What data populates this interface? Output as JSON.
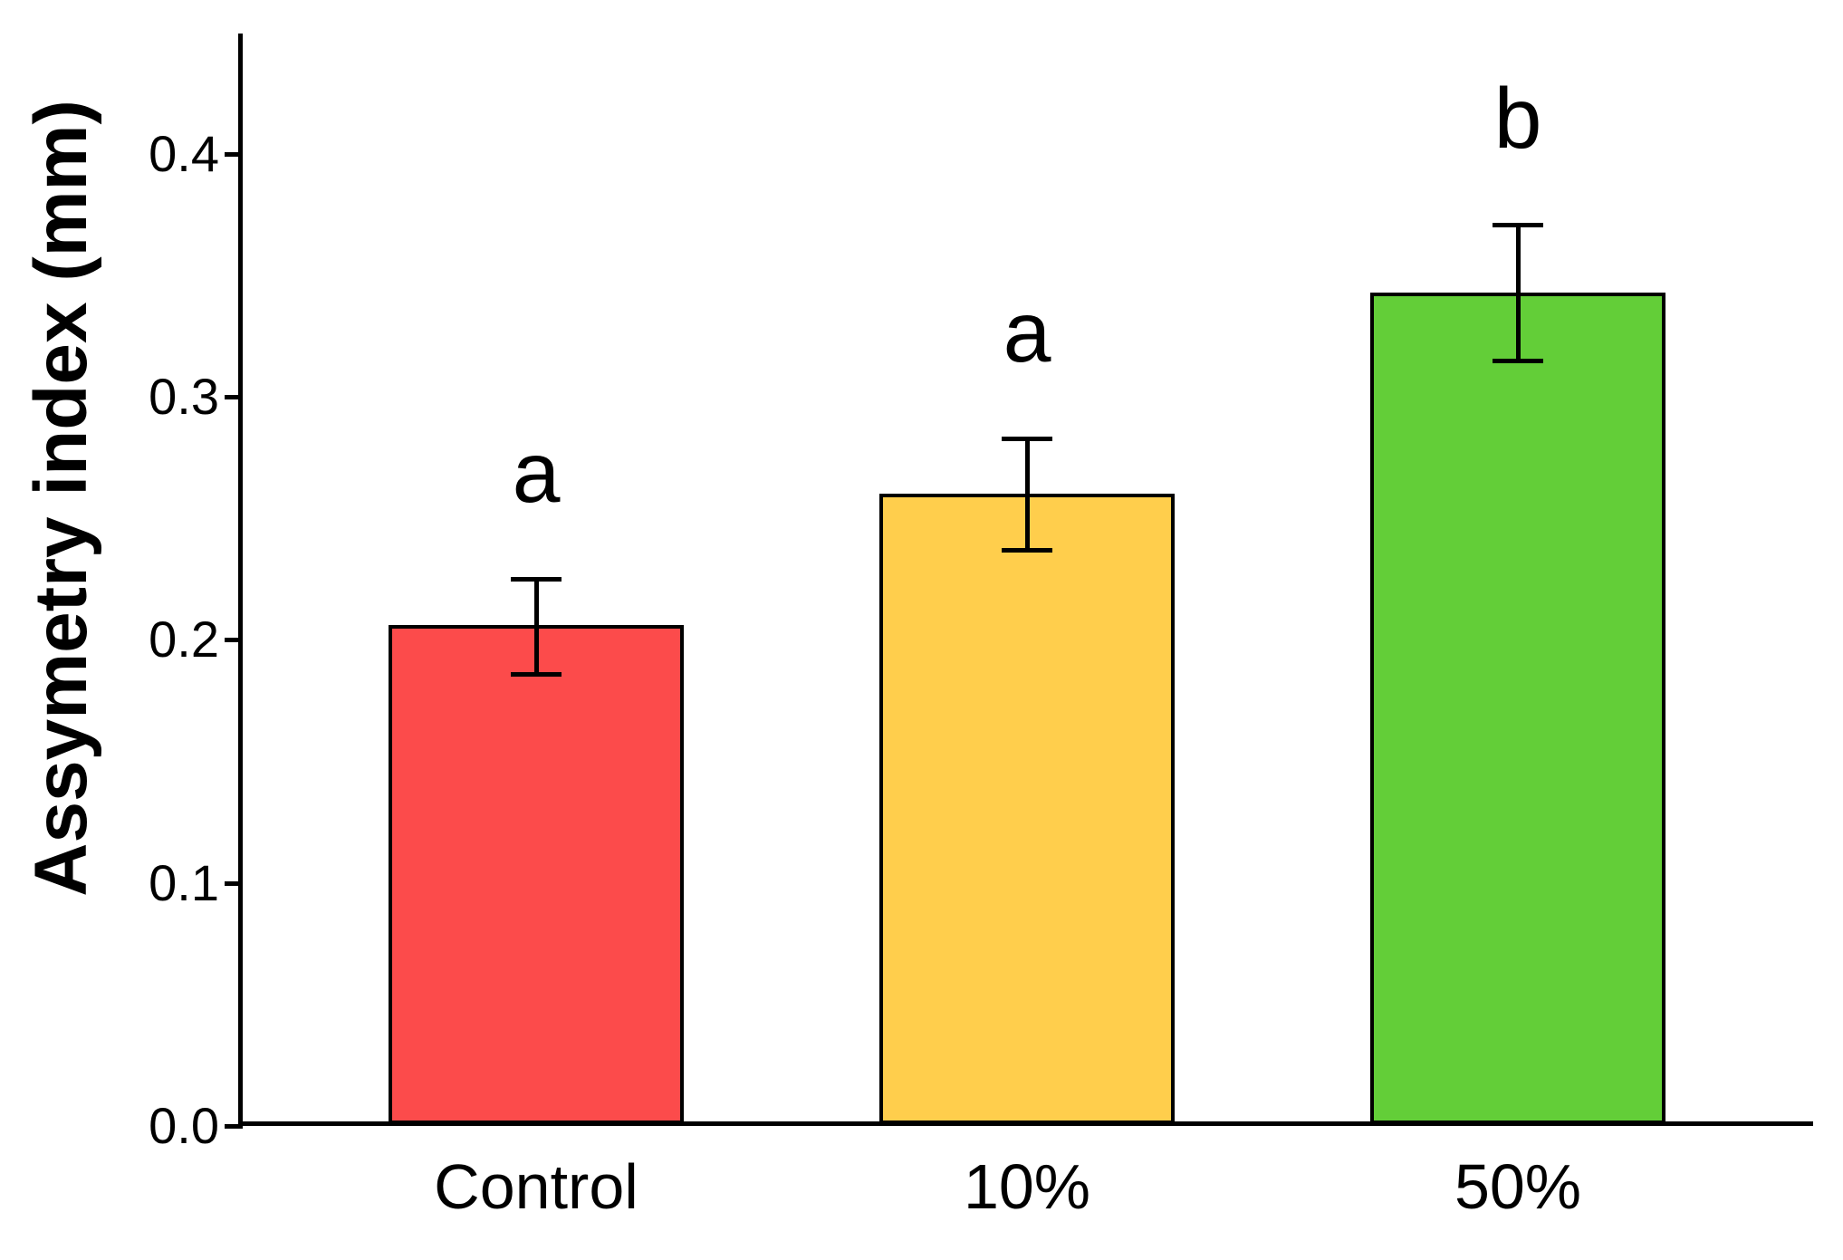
{
  "chart_data": {
    "type": "bar",
    "title": "",
    "xlabel": "",
    "ylabel": "Assymetry index (mm)",
    "categories": [
      "Control",
      "10%",
      "50%"
    ],
    "values": [
      0.206,
      0.26,
      0.343
    ],
    "error_upper": [
      0.225,
      0.283,
      0.371
    ],
    "error_lower": [
      0.186,
      0.237,
      0.315
    ],
    "significance_letters": [
      "a",
      "a",
      "b"
    ],
    "bar_colors": [
      "#FC4B4B",
      "#FFCE4C",
      "#63CE38"
    ],
    "bar_border_color": "#000000",
    "axis_color": "#000000",
    "yticks": [
      "0.0",
      "0.1",
      "0.2",
      "0.3",
      "0.4"
    ],
    "ylim": [
      0,
      0.45
    ],
    "grid": "off",
    "legend_position": "none"
  }
}
